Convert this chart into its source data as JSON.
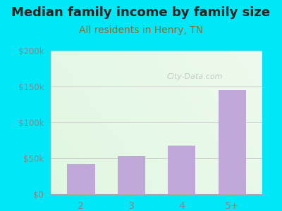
{
  "categories": [
    "2",
    "3",
    "4",
    "5+"
  ],
  "values": [
    42000,
    53000,
    68000,
    145000
  ],
  "bar_color": "#c0a8d8",
  "title": "Median family income by family size",
  "subtitle": "All residents in Henry, TN",
  "title_color": "#222222",
  "subtitle_color": "#996633",
  "ylim": [
    0,
    200000
  ],
  "yticks": [
    0,
    50000,
    100000,
    150000,
    200000
  ],
  "ytick_labels": [
    "$0",
    "$50k",
    "$100k",
    "$150k",
    "$200k"
  ],
  "background_color": "#00e8f8",
  "watermark": "City-Data.com",
  "title_fontsize": 13,
  "subtitle_fontsize": 10,
  "tick_color": "#888888",
  "grid_color": "#cccccc"
}
